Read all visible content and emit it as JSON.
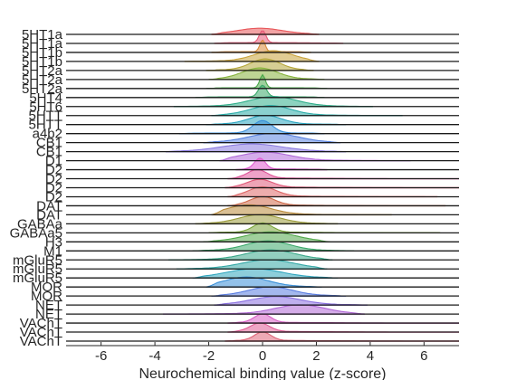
{
  "chart_data": {
    "type": "ridgeline",
    "title": "",
    "xlabel": "Neurochemical binding value (z-score)",
    "ylabel": "",
    "xlim": [
      -7.3,
      7.3
    ],
    "xticks": [
      -6,
      -4,
      -2,
      0,
      2,
      4,
      6
    ],
    "grid": false,
    "legend": "none",
    "series": [
      {
        "label": "5HT1a",
        "color": "#e8575a",
        "range": [
          -1.9,
          2.1
        ],
        "center": -0.1,
        "peak": 0.35,
        "width": 0.8
      },
      {
        "label": "5HT1a",
        "color": "#e85a78",
        "range": [
          -1.8,
          3.0
        ],
        "center": 0.0,
        "peak": 0.8,
        "width": 0.12
      },
      {
        "label": "5HT1b",
        "color": "#d98b3a",
        "range": [
          -1.9,
          1.8
        ],
        "center": 0.0,
        "peak": 0.75,
        "width": 0.1
      },
      {
        "label": "5HT1b",
        "color": "#c9a23a",
        "range": [
          -2.9,
          2.1
        ],
        "center": 0.4,
        "peak": 0.65,
        "width": 0.7
      },
      {
        "label": "5HT2a",
        "color": "#b5a63a",
        "range": [
          -2.1,
          1.9
        ],
        "center": 0.1,
        "peak": 0.7,
        "width": 0.55
      },
      {
        "label": "5HT2a",
        "color": "#86b33c",
        "range": [
          -2.0,
          2.3
        ],
        "center": -0.1,
        "peak": 0.7,
        "width": 0.65
      },
      {
        "label": "5HT2a",
        "color": "#4aa84a",
        "range": [
          -2.1,
          2.4
        ],
        "center": 0.0,
        "peak": 0.85,
        "width": 0.1
      },
      {
        "label": "5HT4",
        "color": "#39a86a",
        "range": [
          -2.5,
          2.3
        ],
        "center": 0.0,
        "peak": 0.75,
        "width": 0.15
      },
      {
        "label": "5HT6",
        "color": "#2fae8a",
        "range": [
          -3.3,
          4.1
        ],
        "center": 0.4,
        "peak": 0.6,
        "width": 0.85
      },
      {
        "label": "5HTT",
        "color": "#2aaca8",
        "range": [
          -1.9,
          5.2
        ],
        "center": 0.3,
        "peak": 0.6,
        "width": 0.75
      },
      {
        "label": "5HTT",
        "color": "#2aa5c0",
        "range": [
          -2.1,
          3.1
        ],
        "center": 0.1,
        "peak": 0.55,
        "width": 0.6
      },
      {
        "label": "a4b2",
        "color": "#3a8fd8",
        "range": [
          -3.1,
          2.3
        ],
        "center": 0.0,
        "peak": 0.8,
        "width": 0.35
      },
      {
        "label": "CB1",
        "color": "#5a84e0",
        "range": [
          -2.2,
          2.9
        ],
        "center": 0.4,
        "peak": 0.55,
        "width": 0.9
      },
      {
        "label": "CB1",
        "color": "#8a7ae0",
        "range": [
          -3.6,
          3.1
        ],
        "center": -0.4,
        "peak": 0.45,
        "width": 1.1
      },
      {
        "label": "D1",
        "color": "#b06ad8",
        "range": [
          -1.6,
          5.5
        ],
        "center": 0.1,
        "peak": 0.5,
        "width": 0.9
      },
      {
        "label": "D2",
        "color": "#e05ad0",
        "range": [
          -1.0,
          2.4
        ],
        "center": -0.1,
        "peak": 0.7,
        "width": 0.2
      },
      {
        "label": "D2",
        "color": "#e0569a",
        "range": [
          -1.3,
          7.3
        ],
        "center": -0.2,
        "peak": 0.55,
        "width": 0.35
      },
      {
        "label": "D2",
        "color": "#e05a7a",
        "range": [
          -1.4,
          7.3
        ],
        "center": -0.1,
        "peak": 0.5,
        "width": 0.45
      },
      {
        "label": "D2",
        "color": "#de6a6a",
        "range": [
          -1.3,
          6.5
        ],
        "center": 0.0,
        "peak": 0.6,
        "width": 0.5
      },
      {
        "label": "DAT",
        "color": "#cf6a4a",
        "range": [
          -1.3,
          6.8
        ],
        "center": 0.0,
        "peak": 0.55,
        "width": 0.45
      },
      {
        "label": "DAT",
        "color": "#b98a3a",
        "range": [
          -1.9,
          4.8
        ],
        "center": -0.5,
        "peak": 0.6,
        "width": 0.8
      },
      {
        "label": "GABAa",
        "color": "#9a9a3a",
        "range": [
          -2.5,
          2.8
        ],
        "center": -0.1,
        "peak": 0.55,
        "width": 0.75
      },
      {
        "label": "GABAa5",
        "color": "#7aa43a",
        "range": [
          -2.0,
          6.6
        ],
        "center": 0.0,
        "peak": 0.6,
        "width": 0.35
      },
      {
        "label": "H3",
        "color": "#52a84a",
        "range": [
          -2.2,
          2.5
        ],
        "center": 0.3,
        "peak": 0.6,
        "width": 0.9
      },
      {
        "label": "M1",
        "color": "#3aa86a",
        "range": [
          -2.6,
          3.4
        ],
        "center": 0.2,
        "peak": 0.6,
        "width": 0.8
      },
      {
        "label": "mGluR5",
        "color": "#3aa88a",
        "range": [
          -3.5,
          2.6
        ],
        "center": 0.3,
        "peak": 0.6,
        "width": 0.9
      },
      {
        "label": "mGluR5",
        "color": "#34a8a6",
        "range": [
          -3.2,
          2.4
        ],
        "center": 0.2,
        "peak": 0.55,
        "width": 0.95
      },
      {
        "label": "mGluR5",
        "color": "#2fa5be",
        "range": [
          -2.6,
          2.8
        ],
        "center": -0.3,
        "peak": 0.55,
        "width": 1.0
      },
      {
        "label": "MOR",
        "color": "#3a90d8",
        "range": [
          -2.1,
          2.2
        ],
        "center": -0.6,
        "peak": 0.6,
        "width": 0.8
      },
      {
        "label": "MOR",
        "color": "#5a7de0",
        "range": [
          -1.9,
          3.1
        ],
        "center": 0.3,
        "peak": 0.55,
        "width": 0.8
      },
      {
        "label": "NET",
        "color": "#8a70e0",
        "range": [
          -1.8,
          3.9
        ],
        "center": 0.5,
        "peak": 0.5,
        "width": 0.9
      },
      {
        "label": "NET",
        "color": "#b068d6",
        "range": [
          -3.7,
          3.8
        ],
        "center": 1.4,
        "peak": 0.55,
        "width": 0.9
      },
      {
        "label": "VAChT",
        "color": "#d860c6",
        "range": [
          -1.3,
          7.3
        ],
        "center": 0.0,
        "peak": 0.55,
        "width": 0.3
      },
      {
        "label": "VAChT",
        "color": "#e05c96",
        "range": [
          -1.3,
          7.3
        ],
        "center": -0.1,
        "peak": 0.55,
        "width": 0.35
      },
      {
        "label": "VAChT",
        "color": "#de6478",
        "range": [
          -1.4,
          7.3
        ],
        "center": 0.0,
        "peak": 0.55,
        "width": 0.3
      }
    ]
  }
}
